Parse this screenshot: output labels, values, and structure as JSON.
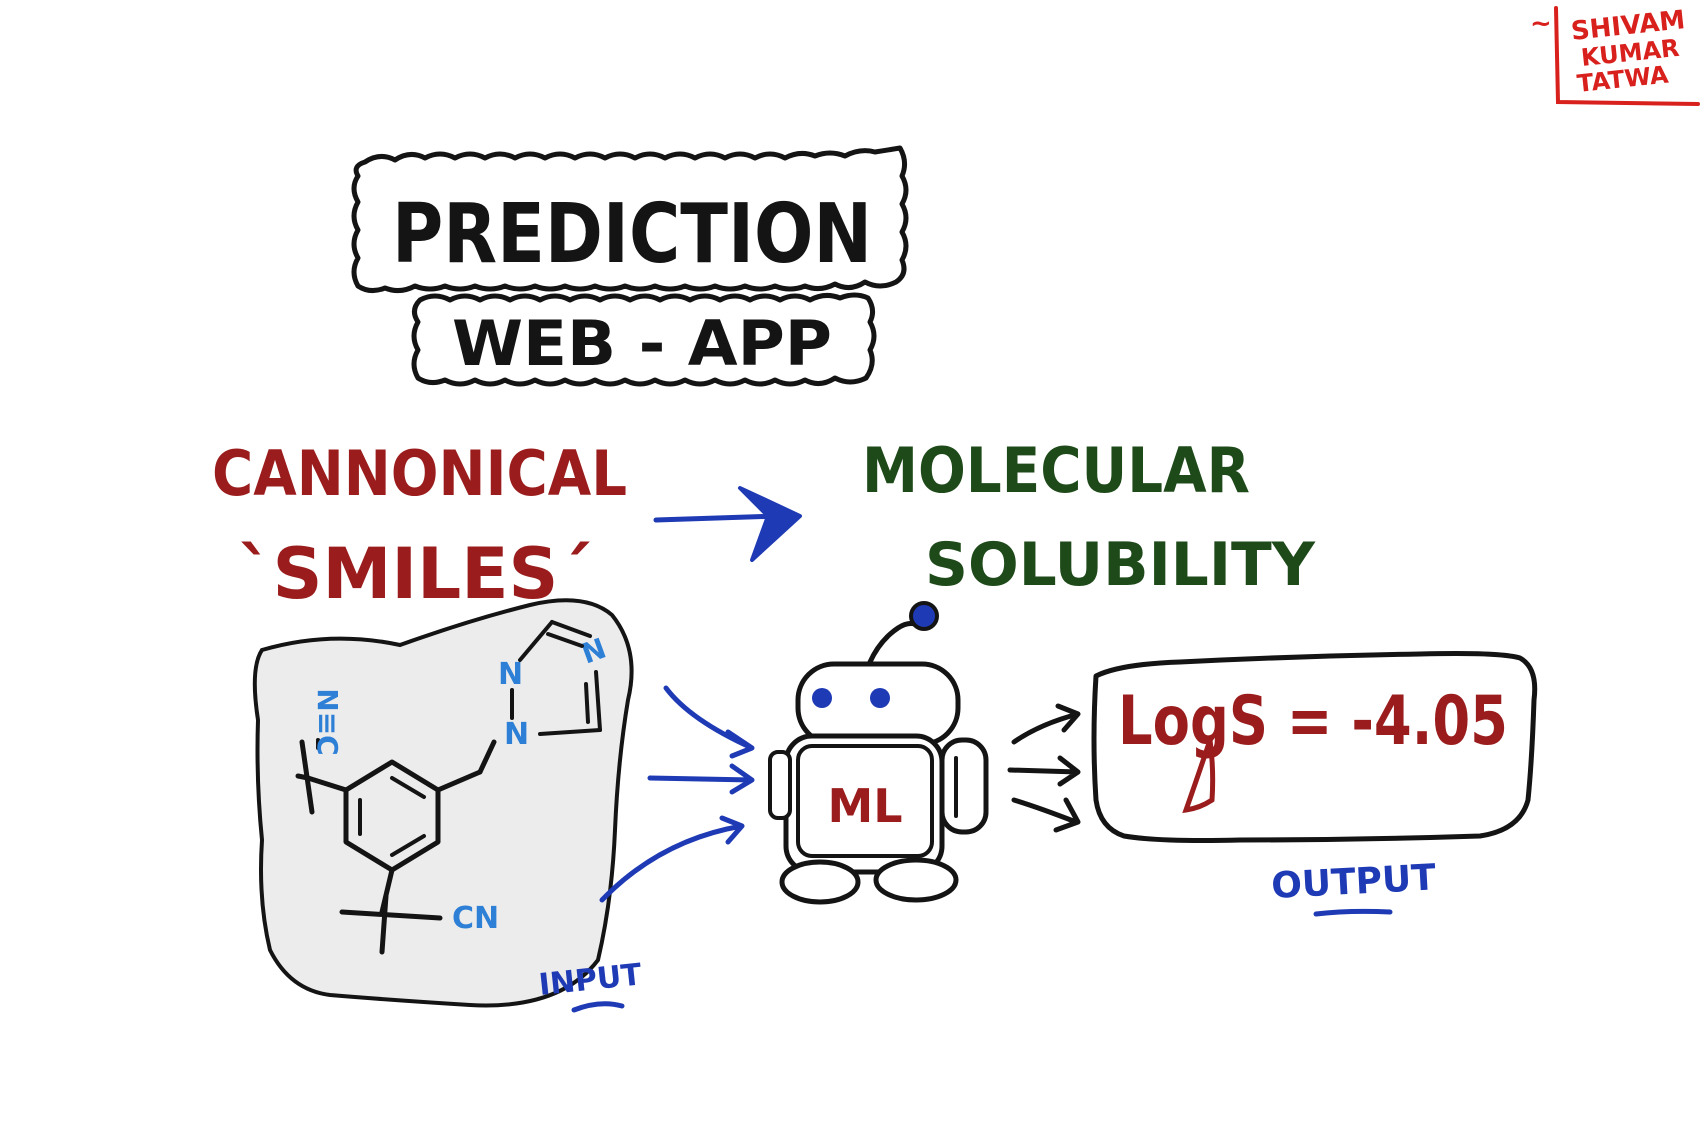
{
  "title": {
    "line1": "PREDICTION",
    "line2": "WEB - APP"
  },
  "input_label": {
    "line1": "CANNONICAL",
    "line2": "`SMILES´"
  },
  "target_label": {
    "line1": "MOLECULAR",
    "line2": "SOLUBILITY"
  },
  "molecule": {
    "atom_n1": "N",
    "atom_n2": "N",
    "atom_n3": "N",
    "atom_n4": "N",
    "nitrile_left": "N≡C",
    "nitrile_bottom": "CN"
  },
  "model": {
    "label": "ML"
  },
  "result": {
    "text": "LogS = -4.05"
  },
  "captions": {
    "input": "INPUT",
    "output": "OUTPUT"
  },
  "signature": {
    "prefix": "~",
    "line1": "SHIVAM",
    "line2": "KUMAR",
    "line3": "TATWA"
  },
  "colors": {
    "ink": "#141414",
    "red": "#9b1c1c",
    "green": "#1e4a1a",
    "blue": "#1f3ab5",
    "light_blue": "#2e7fd6",
    "signature_red": "#d8201c",
    "paper": "#ffffff"
  }
}
